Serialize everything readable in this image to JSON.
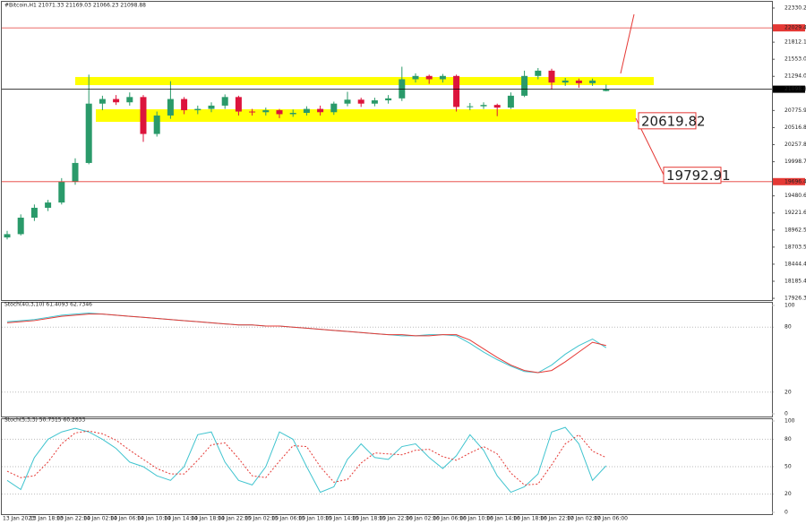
{
  "chart_data": [
    {
      "type": "candlestick",
      "title": "#Bitcoin,H1  21071.33 21169.03 21066.23 21098.88",
      "open": [
        18850,
        18900,
        19150,
        19300,
        19380,
        19700,
        19980,
        20880,
        20950,
        20900,
        20980,
        20420,
        20700,
        20950,
        20780,
        20800,
        20850,
        20980,
        20760,
        20750,
        20780,
        20720,
        20740,
        20800,
        20750,
        20880,
        20940,
        20880,
        20930,
        20960,
        21250,
        21300,
        21250,
        21300,
        20830,
        20840,
        20860,
        20820,
        21000,
        21300,
        21380,
        21200,
        21230,
        21190,
        21071.33
      ],
      "high": [
        18950,
        19200,
        19350,
        19420,
        19750,
        20050,
        21320,
        21000,
        21010,
        21050,
        21010,
        20760,
        21220,
        20980,
        20850,
        20900,
        21020,
        21000,
        20800,
        20820,
        20800,
        20790,
        20840,
        20850,
        20910,
        21060,
        20970,
        20970,
        21010,
        21440,
        21340,
        21320,
        21330,
        21320,
        20890,
        20900,
        20880,
        21050,
        21380,
        21420,
        21410,
        21270,
        21260,
        21260,
        21169.03
      ],
      "low": [
        18820,
        18880,
        19100,
        19250,
        19350,
        19650,
        19960,
        20780,
        20860,
        20850,
        20300,
        20380,
        20650,
        20720,
        20720,
        20750,
        20800,
        20700,
        20700,
        20700,
        20660,
        20680,
        20700,
        20700,
        20710,
        20840,
        20830,
        20840,
        20880,
        20920,
        21200,
        21180,
        21200,
        20760,
        20780,
        20800,
        20690,
        20800,
        20980,
        21250,
        21100,
        21150,
        21120,
        21150,
        21066.23
      ],
      "close": [
        18900,
        19150,
        19300,
        19380,
        19700,
        19980,
        20880,
        20950,
        20900,
        20980,
        20420,
        20700,
        20950,
        20780,
        20800,
        20850,
        20980,
        20760,
        20750,
        20780,
        20720,
        20740,
        20800,
        20750,
        20880,
        20940,
        20880,
        20930,
        20960,
        21250,
        21300,
        21250,
        21300,
        20830,
        20840,
        20860,
        20820,
        21000,
        21300,
        21380,
        21200,
        21230,
        21190,
        21230,
        21098.88
      ],
      "up_color": "#2a9a6a",
      "down_color": "#dc143c",
      "ylim": [
        17900,
        22425
      ],
      "yticks": [
        {
          "value": 22330.2,
          "label": "22330.20"
        },
        {
          "value": 21812.1,
          "label": "21812.10"
        },
        {
          "value": 21553.05,
          "label": "21553.05"
        },
        {
          "value": 21294,
          "label": "21294.00"
        },
        {
          "value": 20775.9,
          "label": "20775.90"
        },
        {
          "value": 20516.85,
          "label": "20516.85"
        },
        {
          "value": 20257.8,
          "label": "20257.80"
        },
        {
          "value": 19998.75,
          "label": "19998.75"
        },
        {
          "value": 19480.65,
          "label": "19480.65"
        },
        {
          "value": 19221.6,
          "label": "19221.60"
        },
        {
          "value": 18962.55,
          "label": "18962.55"
        },
        {
          "value": 18703.5,
          "label": "18703.50"
        },
        {
          "value": 18444.45,
          "label": "18444.45"
        },
        {
          "value": 18185.4,
          "label": "18185.40"
        },
        {
          "value": 17926.35,
          "label": "17926.35"
        }
      ],
      "levels": [
        {
          "value": 22029.49,
          "color": "#e53935"
        },
        {
          "value": 19696.41,
          "color": "#e53935"
        },
        {
          "value": 21098.88,
          "color": "#000000"
        }
      ],
      "zones": [
        {
          "from": 21161,
          "to": 21284,
          "color": "#ffff00"
        },
        {
          "from": 20604,
          "to": 20794,
          "color": "#ffff00"
        }
      ],
      "annotations": [
        {
          "value": 20619.82
        },
        {
          "value": 19792.91
        }
      ],
      "time_labels": [
        "13 Jan 2023",
        "13 Jan 18:00",
        "13 Jan 22:00",
        "14 Jan 02:00",
        "14 Jan 06:00",
        "14 Jan 10:00",
        "14 Jan 14:00",
        "14 Jan 18:00",
        "14 Jan 22:00",
        "15 Jan 02:00",
        "15 Jan 06:00",
        "15 Jan 10:00",
        "15 Jan 14:00",
        "15 Jan 18:00",
        "15 Jan 22:00",
        "16 Jan 02:00",
        "16 Jan 06:00",
        "16 Jan 10:00",
        "16 Jan 14:00",
        "16 Jan 18:00",
        "16 Jan 22:00",
        "17 Jan 02:00",
        "17 Jan 06:00"
      ]
    },
    {
      "type": "line",
      "title": "Stoch(40,3,10) 61.4093 62.7346",
      "ylim": [
        0,
        100
      ],
      "yticks": [
        100,
        80,
        20,
        0
      ],
      "series": [
        {
          "color": "#40c4cf",
          "values": [
            85,
            86,
            87,
            89,
            91,
            92,
            93,
            92,
            91,
            90,
            89,
            88,
            87,
            86,
            85,
            84,
            83,
            82,
            82,
            81,
            81,
            80,
            79,
            78,
            77,
            76,
            75,
            74,
            73,
            72,
            72,
            73,
            73,
            72,
            65,
            57,
            50,
            44,
            39,
            38,
            45,
            55,
            63,
            69,
            61
          ]
        },
        {
          "color": "#e53935",
          "values": [
            84,
            85,
            86,
            88,
            90,
            91,
            92,
            92,
            91,
            90,
            89,
            88,
            87,
            86,
            85,
            84,
            83,
            82,
            82,
            81,
            81,
            80,
            79,
            78,
            77,
            76,
            75,
            74,
            73,
            73,
            72,
            72,
            73,
            73,
            68,
            60,
            52,
            45,
            40,
            38,
            40,
            48,
            57,
            66,
            63
          ]
        }
      ]
    },
    {
      "type": "line",
      "title": "Stoch(5,3,3) 50.7315 60.2633",
      "ylim": [
        0,
        100
      ],
      "yticks": [
        100,
        80,
        50,
        20,
        0
      ],
      "series": [
        {
          "color": "#40c4cf",
          "values": [
            35,
            25,
            60,
            80,
            88,
            92,
            88,
            80,
            70,
            55,
            50,
            40,
            35,
            50,
            85,
            88,
            55,
            35,
            30,
            50,
            88,
            80,
            50,
            22,
            28,
            58,
            75,
            60,
            58,
            72,
            75,
            60,
            48,
            62,
            85,
            68,
            40,
            22,
            28,
            42,
            88,
            93,
            75,
            35,
            51
          ]
        },
        {
          "color": "#e53935",
          "dash": true,
          "values": [
            45,
            38,
            40,
            55,
            75,
            87,
            89,
            86,
            79,
            68,
            58,
            48,
            42,
            42,
            57,
            74,
            76,
            59,
            40,
            38,
            56,
            73,
            72,
            50,
            33,
            36,
            54,
            65,
            64,
            63,
            68,
            69,
            61,
            57,
            65,
            72,
            64,
            43,
            30,
            31,
            52,
            75,
            85,
            67,
            60
          ]
        }
      ]
    }
  ]
}
